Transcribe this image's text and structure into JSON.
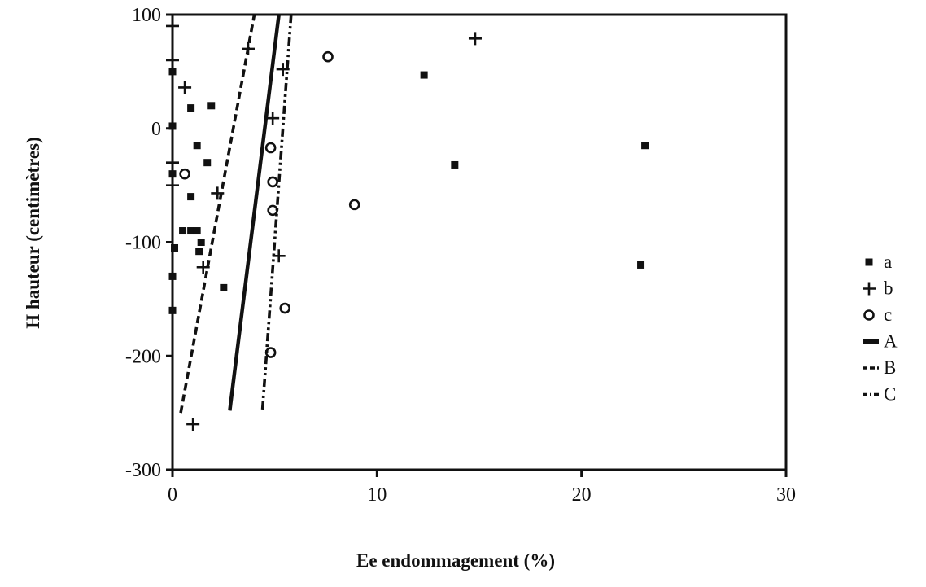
{
  "chart_data": {
    "type": "scatter",
    "title": "",
    "xlabel": "Ee endommagement (%)",
    "ylabel": "H hauteur (centimètres)",
    "xlim": [
      0,
      30
    ],
    "ylim": [
      -300,
      100
    ],
    "x_ticks": [
      0,
      10,
      20,
      30
    ],
    "y_ticks": [
      100,
      0,
      -100,
      -200,
      -300
    ],
    "grid": false,
    "legend_position": "right",
    "series": [
      {
        "name": "a",
        "kind": "points",
        "marker": "square",
        "points": [
          [
            0.0,
            50
          ],
          [
            0.0,
            2
          ],
          [
            0.0,
            -40
          ],
          [
            0.1,
            -105
          ],
          [
            0.0,
            -130
          ],
          [
            0.0,
            -160
          ],
          [
            0.9,
            18
          ],
          [
            1.9,
            20
          ],
          [
            1.2,
            -15
          ],
          [
            1.7,
            -30
          ],
          [
            0.9,
            -60
          ],
          [
            0.5,
            -90
          ],
          [
            0.9,
            -90
          ],
          [
            1.2,
            -90
          ],
          [
            1.4,
            -100
          ],
          [
            1.3,
            -108
          ],
          [
            2.5,
            -140
          ],
          [
            12.3,
            47
          ],
          [
            13.8,
            -32
          ],
          [
            23.1,
            -15
          ],
          [
            22.9,
            -120
          ]
        ]
      },
      {
        "name": "b",
        "kind": "points",
        "marker": "plus",
        "points": [
          [
            0.0,
            90
          ],
          [
            0.0,
            60
          ],
          [
            0.6,
            36
          ],
          [
            0.0,
            -30
          ],
          [
            0.0,
            -50
          ],
          [
            3.7,
            70
          ],
          [
            2.2,
            -57
          ],
          [
            1.5,
            -122
          ],
          [
            1.0,
            -260
          ],
          [
            14.8,
            79
          ],
          [
            5.4,
            52
          ],
          [
            4.9,
            9
          ],
          [
            5.2,
            -112
          ]
        ]
      },
      {
        "name": "c",
        "kind": "points",
        "marker": "circle",
        "points": [
          [
            7.6,
            63
          ],
          [
            0.6,
            -40
          ],
          [
            4.8,
            -17
          ],
          [
            4.9,
            -47
          ],
          [
            4.9,
            -72
          ],
          [
            8.9,
            -67
          ],
          [
            5.5,
            -158
          ],
          [
            4.8,
            -197
          ]
        ]
      },
      {
        "name": "A",
        "kind": "line",
        "dash": "solid",
        "points": [
          [
            2.8,
            -248
          ],
          [
            5.2,
            100
          ]
        ]
      },
      {
        "name": "B",
        "kind": "line",
        "dash": "dashed",
        "points": [
          [
            0.4,
            -250
          ],
          [
            4.0,
            100
          ]
        ]
      },
      {
        "name": "C",
        "kind": "line",
        "dash": "dashdot",
        "points": [
          [
            4.4,
            -247
          ],
          [
            5.8,
            100
          ]
        ]
      }
    ],
    "legend": [
      "a",
      "b",
      "c",
      "A",
      "B",
      "C"
    ]
  }
}
